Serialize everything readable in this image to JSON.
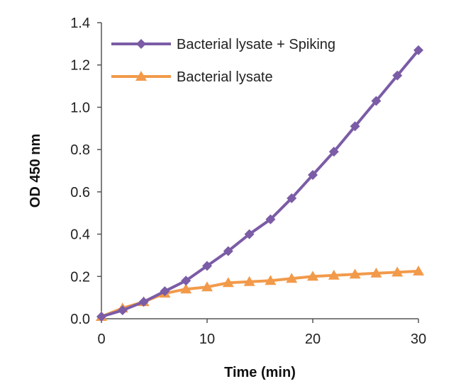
{
  "chart_data": {
    "type": "line",
    "title": "",
    "xlabel": "Time (min)",
    "ylabel": "OD 450 nm",
    "xlim": [
      0,
      30
    ],
    "ylim": [
      0,
      1.4
    ],
    "x_ticks": [
      "0",
      "10",
      "20",
      "30"
    ],
    "x_tick_values": [
      0,
      10,
      20,
      30
    ],
    "y_ticks": [
      "0.0",
      "0.2",
      "0.4",
      "0.6",
      "0.8",
      "1.0",
      "1.2",
      "1.4"
    ],
    "y_tick_values": [
      0,
      0.2,
      0.4,
      0.6,
      0.8,
      1.0,
      1.2,
      1.4
    ],
    "grid": false,
    "legend_position": "top-left",
    "x": [
      0,
      2,
      4,
      6,
      8,
      10,
      12,
      14,
      16,
      18,
      20,
      22,
      24,
      26,
      28,
      30
    ],
    "series": [
      {
        "name": "Bacterial lysate + Spiking",
        "color": "#7b5ca6",
        "marker": "diamond",
        "values": [
          0.01,
          0.04,
          0.08,
          0.13,
          0.18,
          0.25,
          0.32,
          0.4,
          0.47,
          0.57,
          0.68,
          0.79,
          0.91,
          1.03,
          1.15,
          1.27
        ]
      },
      {
        "name": "Bacterial lysate",
        "color": "#f29a4a",
        "marker": "triangle",
        "values": [
          0.01,
          0.05,
          0.08,
          0.12,
          0.14,
          0.15,
          0.17,
          0.175,
          0.18,
          0.19,
          0.2,
          0.205,
          0.21,
          0.215,
          0.22,
          0.225
        ]
      }
    ]
  }
}
